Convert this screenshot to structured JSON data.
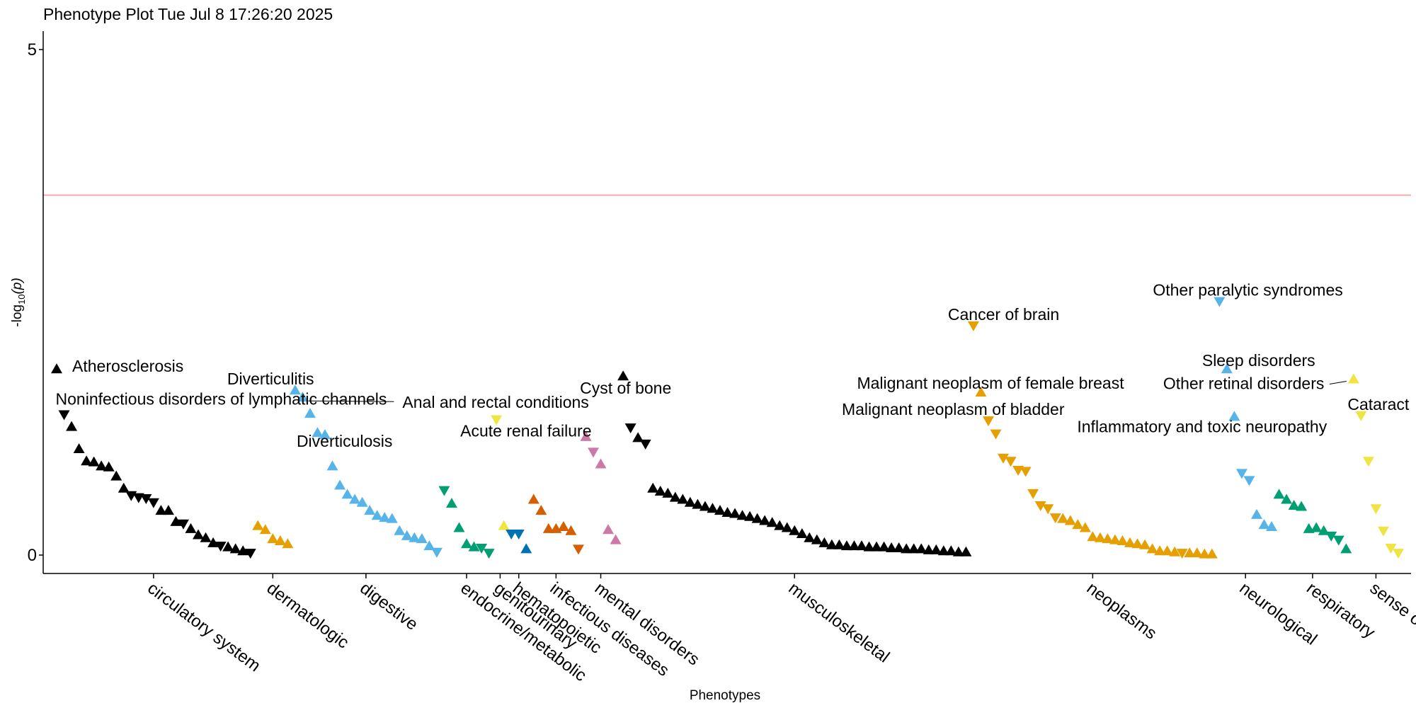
{
  "chart_data": {
    "type": "scatter",
    "title": "Phenotype Plot Tue Jul  8 17:26:20 2025",
    "xlabel": "Phenotypes",
    "ylabel_prefix": "-log",
    "ylabel_sub": "10",
    "ylabel_suffix": "(p)",
    "ylim": [
      0,
      5
    ],
    "yticks": [
      0,
      5
    ],
    "ytick_labels": [
      "0",
      "5"
    ],
    "threshold": 3.56,
    "threshold_color": "#F8AAAA",
    "grid": false,
    "legend": "none",
    "categories": [
      {
        "name": "circulatory system",
        "color": "#000000",
        "values": [
          {
            "y": 1.84,
            "dir": "up",
            "label": "Atherosclerosis"
          },
          {
            "y": 1.39,
            "dir": "down",
            "label": "Noninfectious disorders of lymphatic channels"
          },
          {
            "y": 1.27,
            "dir": "up"
          },
          {
            "y": 1.05,
            "dir": "up"
          },
          {
            "y": 0.93,
            "dir": "up"
          },
          {
            "y": 0.92,
            "dir": "up"
          },
          {
            "y": 0.88,
            "dir": "up"
          },
          {
            "y": 0.87,
            "dir": "up"
          },
          {
            "y": 0.78,
            "dir": "up"
          },
          {
            "y": 0.66,
            "dir": "up"
          },
          {
            "y": 0.59,
            "dir": "down"
          },
          {
            "y": 0.57,
            "dir": "down"
          },
          {
            "y": 0.56,
            "dir": "down"
          },
          {
            "y": 0.52,
            "dir": "down"
          },
          {
            "y": 0.44,
            "dir": "up"
          },
          {
            "y": 0.44,
            "dir": "up"
          },
          {
            "y": 0.33,
            "dir": "up"
          },
          {
            "y": 0.31,
            "dir": "down"
          },
          {
            "y": 0.26,
            "dir": "up"
          },
          {
            "y": 0.2,
            "dir": "up"
          },
          {
            "y": 0.17,
            "dir": "up"
          },
          {
            "y": 0.12,
            "dir": "up"
          },
          {
            "y": 0.09,
            "dir": "down"
          },
          {
            "y": 0.08,
            "dir": "up"
          },
          {
            "y": 0.06,
            "dir": "up"
          },
          {
            "y": 0.04,
            "dir": "up"
          },
          {
            "y": 0.02,
            "dir": "down"
          }
        ]
      },
      {
        "name": "dermatologic",
        "color": "#E69F00",
        "values": [
          {
            "y": 0.29,
            "dir": "up"
          },
          {
            "y": 0.25,
            "dir": "up"
          },
          {
            "y": 0.16,
            "dir": "up"
          },
          {
            "y": 0.14,
            "dir": "up"
          },
          {
            "y": 0.11,
            "dir": "up"
          }
        ]
      },
      {
        "name": "digestive",
        "color": "#56B4E9",
        "values": [
          {
            "y": 1.63,
            "dir": "up",
            "label": "Diverticulitis"
          },
          {
            "y": 1.56,
            "dir": "up",
            "label": "Anal and rectal conditions"
          },
          {
            "y": 1.4,
            "dir": "up",
            "label": "Diverticulosis"
          },
          {
            "y": 1.21,
            "dir": "up"
          },
          {
            "y": 1.19,
            "dir": "up"
          },
          {
            "y": 0.88,
            "dir": "up"
          },
          {
            "y": 0.69,
            "dir": "up"
          },
          {
            "y": 0.6,
            "dir": "up"
          },
          {
            "y": 0.55,
            "dir": "up"
          },
          {
            "y": 0.52,
            "dir": "up"
          },
          {
            "y": 0.44,
            "dir": "up"
          },
          {
            "y": 0.39,
            "dir": "up"
          },
          {
            "y": 0.37,
            "dir": "up"
          },
          {
            "y": 0.36,
            "dir": "up"
          },
          {
            "y": 0.24,
            "dir": "up"
          },
          {
            "y": 0.19,
            "dir": "up"
          },
          {
            "y": 0.17,
            "dir": "up"
          },
          {
            "y": 0.16,
            "dir": "up"
          },
          {
            "y": 0.09,
            "dir": "up"
          },
          {
            "y": 0.03,
            "dir": "down"
          }
        ]
      },
      {
        "name": "endocrine/metabolic",
        "color": "#009E73",
        "values": [
          {
            "y": 0.64,
            "dir": "down"
          },
          {
            "y": 0.51,
            "dir": "up"
          },
          {
            "y": 0.27,
            "dir": "up"
          },
          {
            "y": 0.11,
            "dir": "up"
          },
          {
            "y": 0.08,
            "dir": "up"
          },
          {
            "y": 0.07,
            "dir": "down"
          },
          {
            "y": 0.02,
            "dir": "down"
          }
        ]
      },
      {
        "name": "genitourinary",
        "color": "#F0E442",
        "values": [
          {
            "y": 1.34,
            "dir": "down",
            "label": "Acute renal failure"
          },
          {
            "y": 0.29,
            "dir": "up"
          }
        ]
      },
      {
        "name": "hematopoietic",
        "color": "#0072B2",
        "values": [
          {
            "y": 0.21,
            "dir": "down"
          },
          {
            "y": 0.21,
            "dir": "down"
          },
          {
            "y": 0.06,
            "dir": "up"
          }
        ]
      },
      {
        "name": "infectious diseases",
        "color": "#D55E00",
        "values": [
          {
            "y": 0.55,
            "dir": "up"
          },
          {
            "y": 0.44,
            "dir": "up"
          },
          {
            "y": 0.26,
            "dir": "up"
          },
          {
            "y": 0.26,
            "dir": "up"
          },
          {
            "y": 0.28,
            "dir": "up"
          },
          {
            "y": 0.24,
            "dir": "up"
          },
          {
            "y": 0.06,
            "dir": "down"
          }
        ]
      },
      {
        "name": "mental disorders",
        "color": "#CC79A7",
        "values": [
          {
            "y": 1.17,
            "dir": "up"
          },
          {
            "y": 1.02,
            "dir": "down"
          },
          {
            "y": 0.9,
            "dir": "up"
          },
          {
            "y": 0.25,
            "dir": "up"
          },
          {
            "y": 0.15,
            "dir": "up"
          }
        ]
      },
      {
        "name": "musculoskeletal",
        "color": "#000000",
        "values": [
          {
            "y": 1.77,
            "dir": "up",
            "label": "Cyst of bone"
          },
          {
            "y": 1.26,
            "dir": "down"
          },
          {
            "y": 1.16,
            "dir": "up"
          },
          {
            "y": 1.1,
            "dir": "down"
          },
          {
            "y": 0.66,
            "dir": "up"
          },
          {
            "y": 0.63,
            "dir": "up"
          },
          {
            "y": 0.61,
            "dir": "up"
          },
          {
            "y": 0.57,
            "dir": "up"
          },
          {
            "y": 0.55,
            "dir": "up"
          },
          {
            "y": 0.52,
            "dir": "up"
          },
          {
            "y": 0.5,
            "dir": "up"
          },
          {
            "y": 0.48,
            "dir": "up"
          },
          {
            "y": 0.46,
            "dir": "up"
          },
          {
            "y": 0.44,
            "dir": "up"
          },
          {
            "y": 0.42,
            "dir": "up"
          },
          {
            "y": 0.41,
            "dir": "up"
          },
          {
            "y": 0.39,
            "dir": "up"
          },
          {
            "y": 0.38,
            "dir": "up"
          },
          {
            "y": 0.36,
            "dir": "up"
          },
          {
            "y": 0.34,
            "dir": "up"
          },
          {
            "y": 0.32,
            "dir": "up"
          },
          {
            "y": 0.29,
            "dir": "up"
          },
          {
            "y": 0.27,
            "dir": "up"
          },
          {
            "y": 0.24,
            "dir": "up"
          },
          {
            "y": 0.21,
            "dir": "up"
          },
          {
            "y": 0.17,
            "dir": "up"
          },
          {
            "y": 0.15,
            "dir": "up"
          },
          {
            "y": 0.12,
            "dir": "up"
          },
          {
            "y": 0.1,
            "dir": "up"
          },
          {
            "y": 0.1,
            "dir": "up"
          },
          {
            "y": 0.09,
            "dir": "up"
          },
          {
            "y": 0.09,
            "dir": "up"
          },
          {
            "y": 0.09,
            "dir": "up"
          },
          {
            "y": 0.08,
            "dir": "up"
          },
          {
            "y": 0.08,
            "dir": "up"
          },
          {
            "y": 0.08,
            "dir": "up"
          },
          {
            "y": 0.07,
            "dir": "up"
          },
          {
            "y": 0.07,
            "dir": "up"
          },
          {
            "y": 0.06,
            "dir": "up"
          },
          {
            "y": 0.06,
            "dir": "up"
          },
          {
            "y": 0.06,
            "dir": "up"
          },
          {
            "y": 0.05,
            "dir": "up"
          },
          {
            "y": 0.05,
            "dir": "up"
          },
          {
            "y": 0.04,
            "dir": "up"
          },
          {
            "y": 0.04,
            "dir": "up"
          },
          {
            "y": 0.03,
            "dir": "up"
          },
          {
            "y": 0.03,
            "dir": "up"
          }
        ]
      },
      {
        "name": "neoplasms",
        "color": "#E69F00",
        "values": [
          {
            "y": 2.27,
            "dir": "down",
            "label": "Cancer of brain"
          },
          {
            "y": 1.61,
            "dir": "up",
            "label": "Malignant neoplasm of female breast"
          },
          {
            "y": 1.33,
            "dir": "down",
            "label": "Malignant neoplasm of bladder"
          },
          {
            "y": 1.2,
            "dir": "down"
          },
          {
            "y": 0.96,
            "dir": "down"
          },
          {
            "y": 0.93,
            "dir": "down"
          },
          {
            "y": 0.84,
            "dir": "down"
          },
          {
            "y": 0.83,
            "dir": "down"
          },
          {
            "y": 0.61,
            "dir": "down"
          },
          {
            "y": 0.49,
            "dir": "down"
          },
          {
            "y": 0.46,
            "dir": "down"
          },
          {
            "y": 0.37,
            "dir": "down"
          },
          {
            "y": 0.36,
            "dir": "up"
          },
          {
            "y": 0.34,
            "dir": "up"
          },
          {
            "y": 0.3,
            "dir": "up"
          },
          {
            "y": 0.27,
            "dir": "up"
          },
          {
            "y": 0.18,
            "dir": "up"
          },
          {
            "y": 0.17,
            "dir": "up"
          },
          {
            "y": 0.16,
            "dir": "up"
          },
          {
            "y": 0.15,
            "dir": "up"
          },
          {
            "y": 0.14,
            "dir": "up"
          },
          {
            "y": 0.12,
            "dir": "up"
          },
          {
            "y": 0.11,
            "dir": "up"
          },
          {
            "y": 0.1,
            "dir": "up"
          },
          {
            "y": 0.06,
            "dir": "up"
          },
          {
            "y": 0.04,
            "dir": "up"
          },
          {
            "y": 0.04,
            "dir": "up"
          },
          {
            "y": 0.03,
            "dir": "up"
          },
          {
            "y": 0.02,
            "dir": "down"
          },
          {
            "y": 0.02,
            "dir": "up"
          },
          {
            "y": 0.02,
            "dir": "up"
          },
          {
            "y": 0.01,
            "dir": "up"
          },
          {
            "y": 0.01,
            "dir": "up"
          }
        ]
      },
      {
        "name": "neurological",
        "color": "#56B4E9",
        "values": [
          {
            "y": 2.51,
            "dir": "down",
            "label": "Other paralytic syndromes"
          },
          {
            "y": 1.84,
            "dir": "up",
            "label": "Sleep disorders"
          },
          {
            "y": 1.37,
            "dir": "up",
            "label": "Inflammatory and toxic neuropathy"
          },
          {
            "y": 0.81,
            "dir": "down"
          },
          {
            "y": 0.74,
            "dir": "down"
          },
          {
            "y": 0.4,
            "dir": "up"
          },
          {
            "y": 0.3,
            "dir": "up"
          },
          {
            "y": 0.28,
            "dir": "up"
          }
        ]
      },
      {
        "name": "respiratory",
        "color": "#009E73",
        "values": [
          {
            "y": 0.6,
            "dir": "up"
          },
          {
            "y": 0.55,
            "dir": "up"
          },
          {
            "y": 0.49,
            "dir": "up"
          },
          {
            "y": 0.48,
            "dir": "up"
          },
          {
            "y": 0.26,
            "dir": "up"
          },
          {
            "y": 0.27,
            "dir": "up"
          },
          {
            "y": 0.24,
            "dir": "up"
          },
          {
            "y": 0.19,
            "dir": "down"
          },
          {
            "y": 0.15,
            "dir": "down"
          },
          {
            "y": 0.06,
            "dir": "up"
          }
        ]
      },
      {
        "name": "sense organs",
        "color": "#F0E442",
        "values": [
          {
            "y": 1.74,
            "dir": "up",
            "label": "Other retinal disorders"
          },
          {
            "y": 1.38,
            "dir": "down",
            "label": "Cataract"
          },
          {
            "y": 0.93,
            "dir": "down"
          },
          {
            "y": 0.46,
            "dir": "down"
          },
          {
            "y": 0.24,
            "dir": "down"
          },
          {
            "y": 0.07,
            "dir": "down"
          },
          {
            "y": 0.02,
            "dir": "down"
          }
        ]
      }
    ],
    "xtick_labels": [
      "circulatory system",
      "dermatologic",
      "digestive",
      "endocrine/metabolic",
      "genitourinary",
      "hematopoietic",
      "infectious diseases",
      "mental disorders",
      "musculoskeletal",
      "neoplasms",
      "neurological",
      "respiratory",
      "sense org"
    ]
  }
}
